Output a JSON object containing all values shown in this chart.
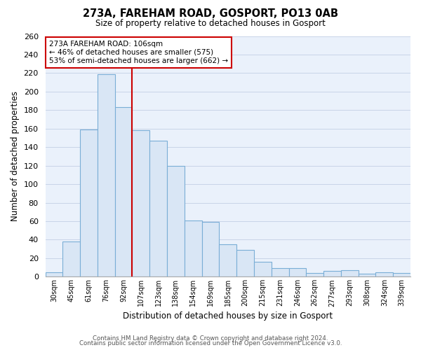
{
  "title": "273A, FAREHAM ROAD, GOSPORT, PO13 0AB",
  "subtitle": "Size of property relative to detached houses in Gosport",
  "xlabel": "Distribution of detached houses by size in Gosport",
  "ylabel": "Number of detached properties",
  "footnote1": "Contains HM Land Registry data © Crown copyright and database right 2024.",
  "footnote2": "Contains public sector information licensed under the Open Government Licence v3.0.",
  "bar_labels": [
    "30sqm",
    "45sqm",
    "61sqm",
    "76sqm",
    "92sqm",
    "107sqm",
    "123sqm",
    "138sqm",
    "154sqm",
    "169sqm",
    "185sqm",
    "200sqm",
    "215sqm",
    "231sqm",
    "246sqm",
    "262sqm",
    "277sqm",
    "293sqm",
    "308sqm",
    "324sqm",
    "339sqm"
  ],
  "bar_values": [
    5,
    38,
    159,
    219,
    183,
    158,
    147,
    120,
    61,
    59,
    35,
    29,
    16,
    9,
    9,
    4,
    6,
    7,
    3,
    5,
    4
  ],
  "bar_color": "#d9e6f5",
  "bar_edge_color": "#7aaed6",
  "highlight_index": 5,
  "highlight_line_color": "#cc0000",
  "annotation_title": "273A FAREHAM ROAD: 106sqm",
  "annotation_line1": "← 46% of detached houses are smaller (575)",
  "annotation_line2": "53% of semi-detached houses are larger (662) →",
  "annotation_box_color": "#ffffff",
  "annotation_box_edge_color": "#cc0000",
  "ylim": [
    0,
    260
  ],
  "yticks": [
    0,
    20,
    40,
    60,
    80,
    100,
    120,
    140,
    160,
    180,
    200,
    220,
    240,
    260
  ],
  "plot_bg_color": "#eaf1fb",
  "grid_color": "#c8d4e8",
  "background_color": "#ffffff"
}
